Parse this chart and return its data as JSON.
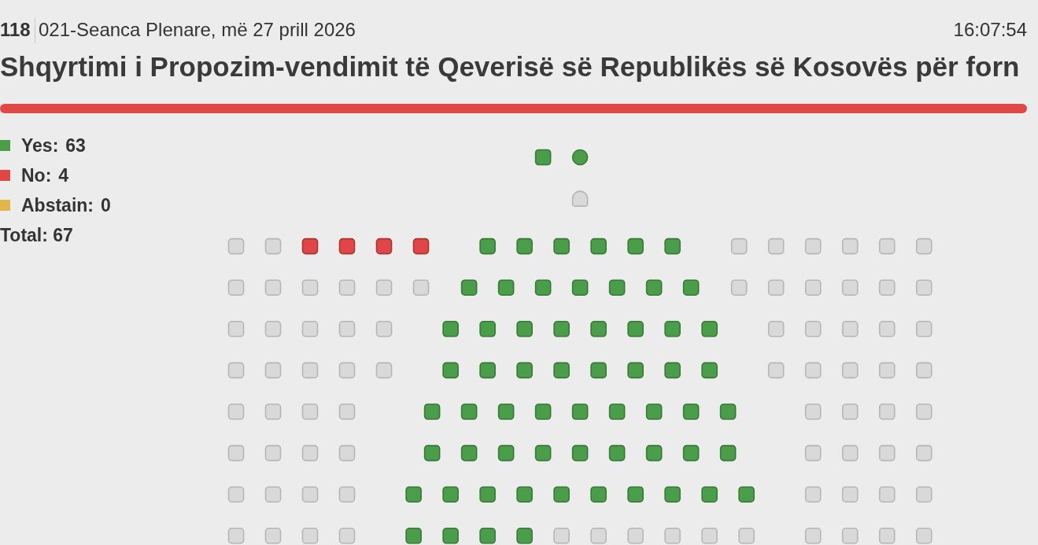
{
  "chart_data": {
    "type": "other",
    "title": "Shqyrtimi i Propozim-vendimit të Qeverisë së Republikës së Kosovës për forn",
    "subtitle": "021-Seanca Plenare, më 27 prill 2026",
    "annotations": [
      "118",
      "16:07:54",
      "Total: 67"
    ],
    "series": [
      {
        "name": "Yes:",
        "color": "#4a9e4a",
        "values": [
          63
        ]
      },
      {
        "name": "No:",
        "color": "#e04646",
        "values": [
          4
        ]
      },
      {
        "name": "Abstain:",
        "color": "#e2b648",
        "values": [
          0
        ]
      }
    ],
    "data_labels": true,
    "legend": "top left"
  }
}
